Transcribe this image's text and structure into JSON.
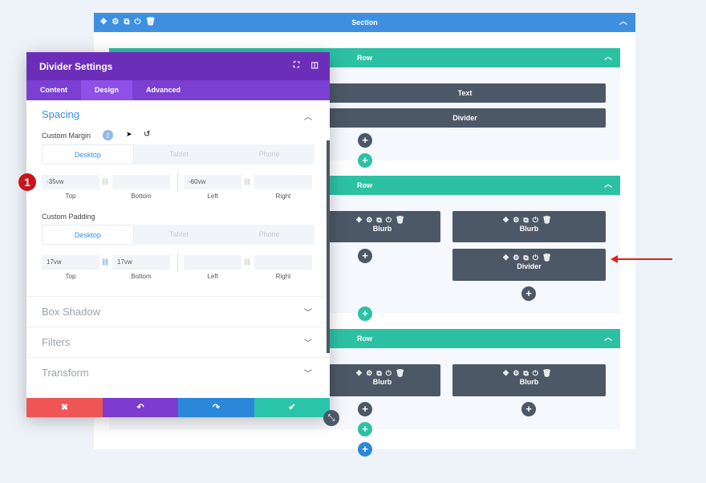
{
  "section": {
    "title": "Section",
    "icons": "✥⚙⧉⏻🗑"
  },
  "rows": [
    {
      "title": "Row",
      "modules": [
        {
          "label": "Text"
        },
        {
          "label": "Divider"
        }
      ]
    },
    {
      "title": "Row",
      "modules": [
        {
          "label": "Blurb"
        },
        {
          "label": "Blurb"
        },
        {
          "label": "Divider"
        }
      ]
    },
    {
      "title": "Row",
      "modules": [
        {
          "label": "Blurb"
        },
        {
          "label": "Blurb"
        }
      ]
    }
  ],
  "module_icons": "✥⚙⧉⏻🗑",
  "plus": "+",
  "panel": {
    "title": "Divider Settings",
    "tabs": [
      "Content",
      "Design",
      "Advanced"
    ],
    "active_tab": "Design",
    "spacing": {
      "title": "Spacing",
      "margin_label": "Custom Margin",
      "padding_label": "Custom Padding",
      "devices": [
        "Desktop",
        "Tablet",
        "Phone"
      ],
      "margin": {
        "top": "-35vw",
        "bottom": "",
        "left": "-60vw",
        "right": ""
      },
      "padding": {
        "top": "17vw",
        "bottom": "17vw",
        "left": "",
        "right": ""
      },
      "captions": [
        "Top",
        "Bottom",
        "Left",
        "Right"
      ]
    },
    "sections": [
      "Box Shadow",
      "Filters",
      "Transform"
    ],
    "badge": "1"
  },
  "colors": {
    "section": "#3e8fe0",
    "row": "#2dc1a3",
    "panel_header": "#6c2eb9",
    "cancel": "#ef5555",
    "undo": "#7e3bd0",
    "redo": "#2b87da",
    "save": "#29c4a9",
    "arrow": "#e02020"
  }
}
